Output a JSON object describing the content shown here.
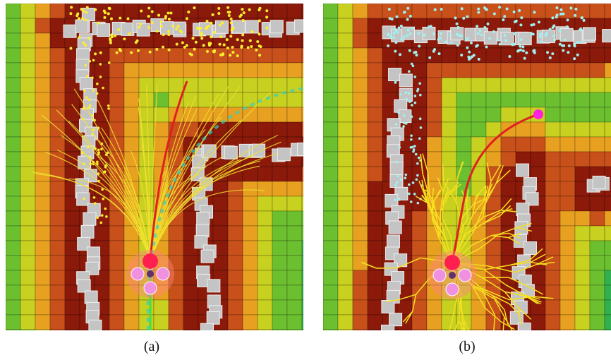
{
  "panels": [
    {
      "label": "(a)"
    },
    {
      "label": "(b)"
    }
  ]
}
